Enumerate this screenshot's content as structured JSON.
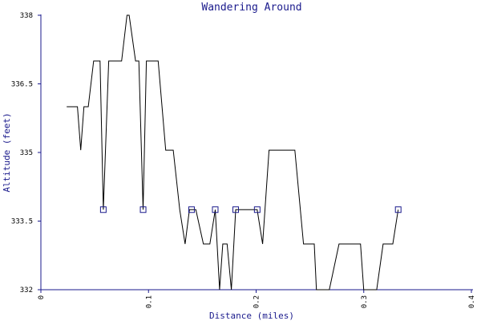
{
  "chart_data": {
    "type": "line",
    "title": "Wandering Around",
    "xlabel": "Distance (miles)",
    "ylabel": "Altitude (feet)",
    "xlim": [
      0,
      0.4
    ],
    "ylim": [
      332,
      338
    ],
    "x_ticks": [
      0,
      0.1,
      0.2,
      0.3,
      0.4
    ],
    "x_tick_labels": [
      "0",
      "0.1",
      "0.2",
      "0.3",
      "0.4"
    ],
    "y_ticks": [
      332,
      333.5,
      335,
      336.5,
      338
    ],
    "y_tick_labels": [
      "332",
      "333.5",
      "335",
      "336.5",
      "338"
    ],
    "grid": false,
    "line_color": "#000000",
    "axis_color": "#1a1a8c",
    "marker_color": "#1a1a8c",
    "series": [
      {
        "x": [
          0.024,
          0.034,
          0.037,
          0.04,
          0.044,
          0.049,
          0.055,
          0.058,
          0.063,
          0.066,
          0.075,
          0.08,
          0.082,
          0.088,
          0.091,
          0.095,
          0.098,
          0.101,
          0.109,
          0.116,
          0.123,
          0.129,
          0.134,
          0.138,
          0.144,
          0.151,
          0.157,
          0.162,
          0.166,
          0.169,
          0.173,
          0.177,
          0.181,
          0.19,
          0.201,
          0.206,
          0.212,
          0.222,
          0.236,
          0.244,
          0.254,
          0.256,
          0.268,
          0.277,
          0.297,
          0.3,
          0.312,
          0.318,
          0.327,
          0.332
        ],
        "y": [
          336,
          336,
          335.05,
          336,
          336,
          337,
          337,
          333.75,
          337,
          337,
          337,
          338,
          338,
          337,
          337,
          333.75,
          337,
          337,
          337,
          335.05,
          335.05,
          333.75,
          333,
          333.75,
          333.75,
          333,
          333,
          333.75,
          332,
          333,
          333,
          332,
          333.75,
          333.75,
          333.75,
          333,
          335.05,
          335.05,
          335.05,
          333,
          333,
          332,
          332,
          333,
          333,
          332,
          332,
          333,
          333,
          333.75
        ]
      }
    ],
    "markers": {
      "shape": "square",
      "x": [
        0.058,
        0.095,
        0.14,
        0.162,
        0.181,
        0.201,
        0.332
      ],
      "y": [
        333.75,
        333.75,
        333.75,
        333.75,
        333.75,
        333.75,
        333.75
      ]
    }
  }
}
